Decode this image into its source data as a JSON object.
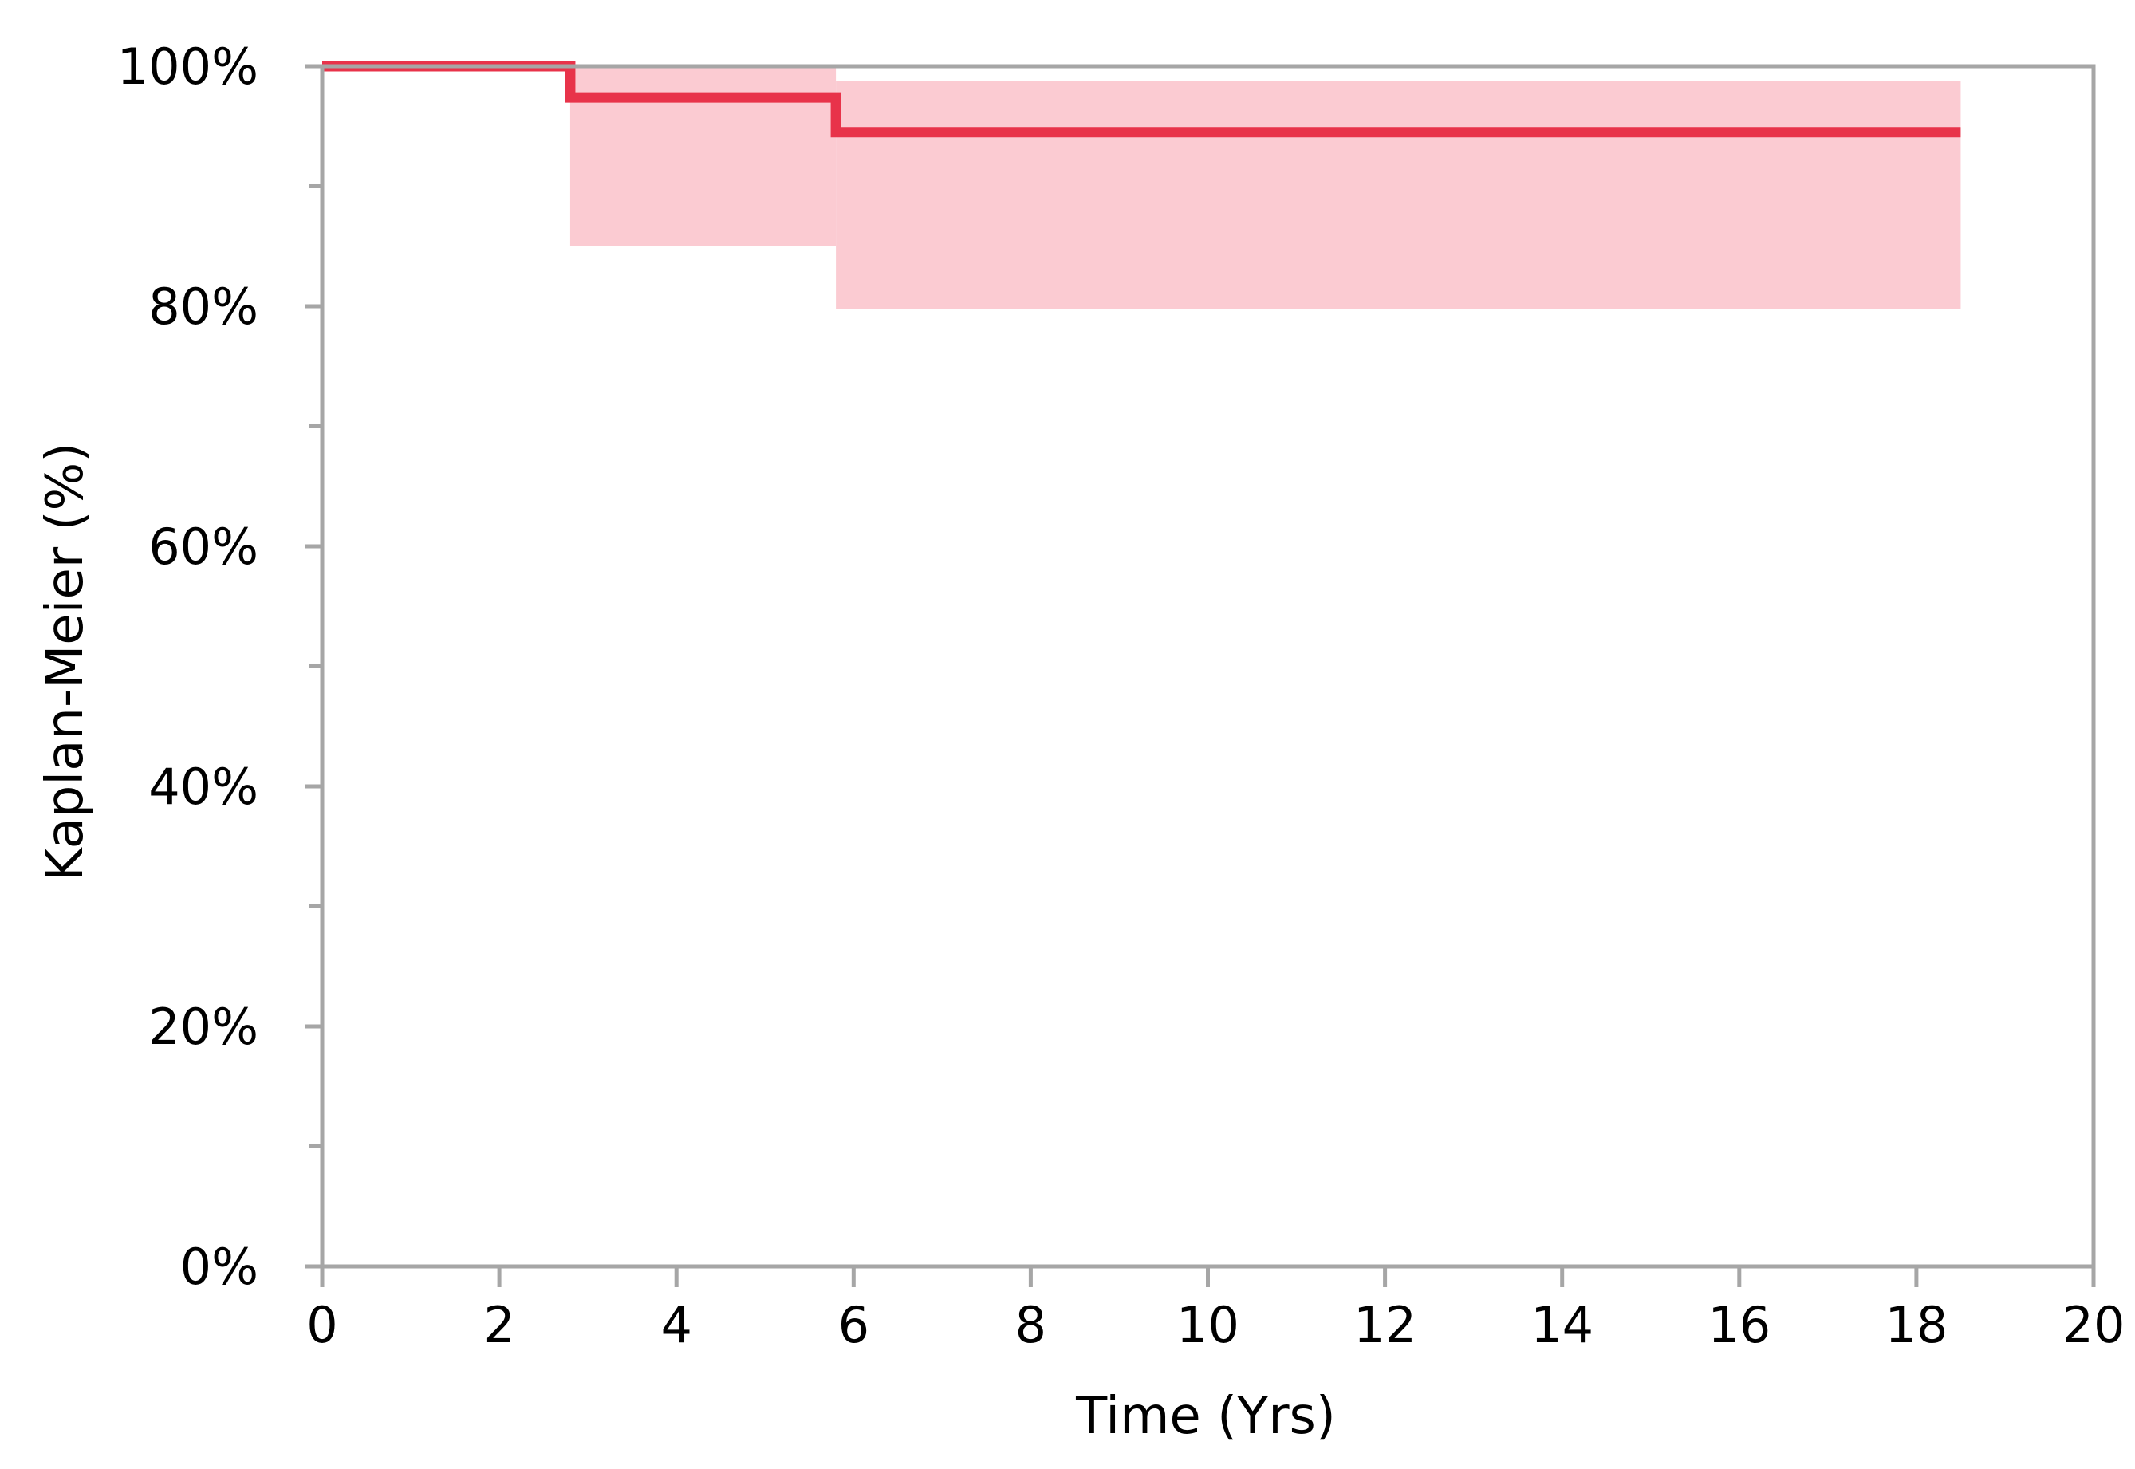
{
  "chart_data": {
    "type": "line",
    "title": "",
    "xlabel": "Time (Yrs)",
    "ylabel": "Kaplan-Meier (%)",
    "xlim": [
      0,
      20
    ],
    "ylim": [
      0,
      100
    ],
    "x_ticks": [
      0,
      2,
      4,
      6,
      8,
      10,
      12,
      14,
      16,
      18,
      20
    ],
    "x_tick_labels": [
      "0",
      "2",
      "4",
      "6",
      "8",
      "10",
      "12",
      "14",
      "16",
      "18",
      "20"
    ],
    "y_ticks": [
      0,
      20,
      40,
      60,
      80,
      100
    ],
    "y_tick_labels": [
      "0%",
      "20%",
      "40%",
      "60%",
      "80%",
      "100%"
    ],
    "y_minor_ticks": [
      10,
      30,
      50,
      70,
      90
    ],
    "grid": false,
    "legend": "none",
    "series": [
      {
        "step": "post",
        "x": [
          0,
          2.8,
          5.8,
          18.5
        ],
        "y": [
          100,
          97.4,
          94.5,
          94.5
        ],
        "color": "#E8334A"
      }
    ],
    "confidence_band": {
      "color": "#FBCBD2",
      "intervals": [
        {
          "x_start": 2.8,
          "x_end": 5.8,
          "lower": 85.0,
          "upper": 100
        },
        {
          "x_start": 5.8,
          "x_end": 18.5,
          "lower": 79.8,
          "upper": 98.8
        }
      ]
    },
    "axis_color": "#A6A6A6"
  }
}
